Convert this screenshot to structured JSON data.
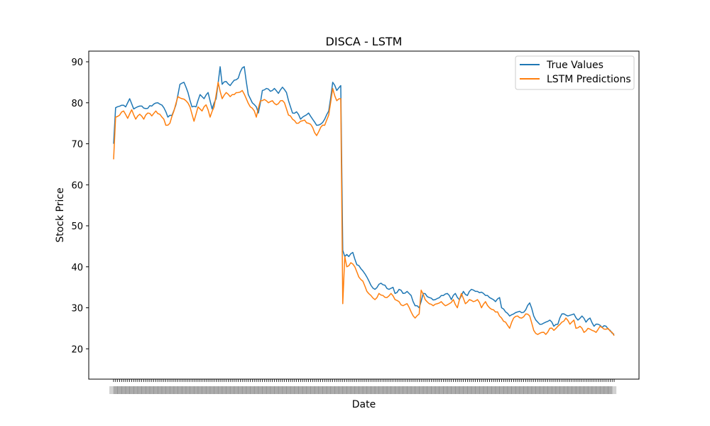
{
  "chart_data": {
    "type": "line",
    "title": "DISCA - LSTM",
    "xlabel": "Date",
    "ylabel": "Stock Price",
    "ylim": [
      12.6,
      92.6
    ],
    "yticks": [
      20,
      30,
      40,
      50,
      60,
      70,
      80,
      90
    ],
    "grid": false,
    "legend_position": "top-right",
    "x_tick_note": "dense overlapping date tick labels (unreadable)",
    "x_count": 250,
    "series": [
      {
        "name": "True Values",
        "color": "#1f77b4",
        "keypoints": [
          [
            0,
            70
          ],
          [
            1,
            78.8
          ],
          [
            4,
            79.4
          ],
          [
            6,
            79.0
          ],
          [
            8,
            81.0
          ],
          [
            10,
            78.5
          ],
          [
            13,
            79.2
          ],
          [
            16,
            78.6
          ],
          [
            19,
            79.2
          ],
          [
            22,
            80.0
          ],
          [
            25,
            78.8
          ],
          [
            27,
            76.5
          ],
          [
            29,
            76.9
          ],
          [
            31,
            79.5
          ],
          [
            33,
            84.5
          ],
          [
            35,
            85.0
          ],
          [
            37,
            82.5
          ],
          [
            39,
            79.0
          ],
          [
            41,
            79.0
          ],
          [
            43,
            82.0
          ],
          [
            45,
            81.0
          ],
          [
            47,
            82.5
          ],
          [
            49,
            78.5
          ],
          [
            51,
            81.0
          ],
          [
            53,
            88.8
          ],
          [
            54,
            84.5
          ],
          [
            56,
            85.2
          ],
          [
            58,
            84.2
          ],
          [
            60,
            85.5
          ],
          [
            62,
            86.0
          ],
          [
            64,
            88.5
          ],
          [
            65,
            88.8
          ],
          [
            67,
            82.0
          ],
          [
            69,
            80.0
          ],
          [
            71,
            79.0
          ],
          [
            72,
            77.5
          ],
          [
            74,
            83.0
          ],
          [
            76,
            83.5
          ],
          [
            78,
            82.8
          ],
          [
            80,
            83.5
          ],
          [
            82,
            82.3
          ],
          [
            84,
            83.8
          ],
          [
            86,
            82.5
          ],
          [
            88,
            79.0
          ],
          [
            89,
            77.5
          ],
          [
            91,
            77.8
          ],
          [
            93,
            76.0
          ],
          [
            95,
            76.8
          ],
          [
            97,
            77.5
          ],
          [
            99,
            76.0
          ],
          [
            101,
            74.5
          ],
          [
            103,
            74.8
          ],
          [
            105,
            76.0
          ],
          [
            107,
            78.0
          ],
          [
            109,
            85.0
          ],
          [
            111,
            83.0
          ],
          [
            113,
            84.2
          ],
          [
            114,
            44.0
          ],
          [
            115,
            42.5
          ],
          [
            116,
            43.0
          ],
          [
            117,
            42.5
          ],
          [
            119,
            43.5
          ],
          [
            121,
            40.5
          ],
          [
            124,
            39.0
          ],
          [
            126,
            37.5
          ],
          [
            128,
            35.5
          ],
          [
            130,
            34.5
          ],
          [
            133,
            36.0
          ],
          [
            135,
            35.5
          ],
          [
            137,
            34.5
          ],
          [
            139,
            35.0
          ],
          [
            140,
            33.5
          ],
          [
            142,
            34.5
          ],
          [
            144,
            33.5
          ],
          [
            146,
            34.0
          ],
          [
            148,
            33.0
          ],
          [
            150,
            30.5
          ],
          [
            152,
            30.0
          ],
          [
            154,
            33.5
          ],
          [
            157,
            32.5
          ],
          [
            160,
            32.0
          ],
          [
            163,
            33.0
          ],
          [
            166,
            33.5
          ],
          [
            168,
            32.0
          ],
          [
            170,
            33.5
          ],
          [
            172,
            32.0
          ],
          [
            174,
            34.0
          ],
          [
            176,
            33.0
          ],
          [
            178,
            34.5
          ],
          [
            181,
            34.0
          ],
          [
            184,
            33.5
          ],
          [
            187,
            32.5
          ],
          [
            190,
            31.5
          ],
          [
            192,
            32.5
          ],
          [
            193,
            30.0
          ],
          [
            195,
            29.0
          ],
          [
            197,
            28.0
          ],
          [
            199,
            28.5
          ],
          [
            201,
            29.0
          ],
          [
            203,
            28.8
          ],
          [
            205,
            29.5
          ],
          [
            207,
            31.2
          ],
          [
            209,
            28.0
          ],
          [
            211,
            26.5
          ],
          [
            213,
            26.0
          ],
          [
            215,
            26.5
          ],
          [
            217,
            27.0
          ],
          [
            219,
            25.5
          ],
          [
            221,
            26.0
          ],
          [
            223,
            28.5
          ],
          [
            226,
            28.0
          ],
          [
            229,
            28.5
          ],
          [
            231,
            27.0
          ],
          [
            233,
            28.0
          ],
          [
            235,
            26.5
          ],
          [
            237,
            27.5
          ],
          [
            239,
            25.5
          ],
          [
            241,
            26.0
          ],
          [
            243,
            25.2
          ],
          [
            245,
            25.5
          ],
          [
            247,
            24.5
          ],
          [
            249,
            23.5
          ]
        ]
      },
      {
        "name": "LSTM Predictions",
        "color": "#ff7f0e",
        "keypoints": [
          [
            0,
            66.2
          ],
          [
            1,
            76.5
          ],
          [
            3,
            77.0
          ],
          [
            5,
            78.0
          ],
          [
            7,
            76.2
          ],
          [
            9,
            78.3
          ],
          [
            11,
            76.0
          ],
          [
            13,
            77.2
          ],
          [
            15,
            76.0
          ],
          [
            17,
            77.5
          ],
          [
            19,
            76.8
          ],
          [
            21,
            78.0
          ],
          [
            23,
            77.2
          ],
          [
            25,
            76.0
          ],
          [
            26,
            74.5
          ],
          [
            28,
            75.0
          ],
          [
            30,
            78.0
          ],
          [
            32,
            81.5
          ],
          [
            34,
            81.0
          ],
          [
            36,
            80.5
          ],
          [
            38,
            79.0
          ],
          [
            40,
            75.5
          ],
          [
            42,
            79.0
          ],
          [
            44,
            78.0
          ],
          [
            46,
            79.5
          ],
          [
            48,
            76.5
          ],
          [
            50,
            79.0
          ],
          [
            52,
            85.0
          ],
          [
            54,
            81.0
          ],
          [
            56,
            82.5
          ],
          [
            58,
            81.5
          ],
          [
            60,
            82.0
          ],
          [
            62,
            82.5
          ],
          [
            64,
            83.0
          ],
          [
            66,
            81.0
          ],
          [
            68,
            79.0
          ],
          [
            70,
            78.0
          ],
          [
            71,
            76.5
          ],
          [
            73,
            80.5
          ],
          [
            75,
            80.8
          ],
          [
            77,
            80.0
          ],
          [
            79,
            80.5
          ],
          [
            81,
            79.5
          ],
          [
            83,
            80.5
          ],
          [
            85,
            80.0
          ],
          [
            87,
            77.0
          ],
          [
            89,
            76.0
          ],
          [
            91,
            75.0
          ],
          [
            93,
            75.5
          ],
          [
            95,
            75.8
          ],
          [
            97,
            75.0
          ],
          [
            99,
            74.0
          ],
          [
            101,
            72.0
          ],
          [
            103,
            74.0
          ],
          [
            105,
            74.5
          ],
          [
            107,
            77.0
          ],
          [
            109,
            83.5
          ],
          [
            111,
            80.5
          ],
          [
            113,
            81.0
          ],
          [
            114,
            31.0
          ],
          [
            115,
            42.5
          ],
          [
            116,
            40.0
          ],
          [
            118,
            41.0
          ],
          [
            120,
            40.0
          ],
          [
            122,
            37.5
          ],
          [
            124,
            36.5
          ],
          [
            126,
            34.0
          ],
          [
            128,
            33.0
          ],
          [
            130,
            32.0
          ],
          [
            132,
            33.5
          ],
          [
            134,
            33.0
          ],
          [
            136,
            32.5
          ],
          [
            138,
            33.5
          ],
          [
            140,
            32.0
          ],
          [
            142,
            31.5
          ],
          [
            144,
            30.5
          ],
          [
            146,
            31.0
          ],
          [
            148,
            29.0
          ],
          [
            150,
            27.5
          ],
          [
            152,
            28.5
          ],
          [
            153,
            34.3
          ],
          [
            155,
            32.0
          ],
          [
            157,
            31.0
          ],
          [
            159,
            30.5
          ],
          [
            161,
            31.0
          ],
          [
            163,
            31.5
          ],
          [
            165,
            30.5
          ],
          [
            167,
            31.0
          ],
          [
            169,
            32.0
          ],
          [
            171,
            30.0
          ],
          [
            173,
            33.5
          ],
          [
            175,
            31.0
          ],
          [
            177,
            32.0
          ],
          [
            179,
            31.5
          ],
          [
            181,
            32.0
          ],
          [
            183,
            30.0
          ],
          [
            185,
            31.5
          ],
          [
            187,
            30.0
          ],
          [
            189,
            29.5
          ],
          [
            191,
            29.0
          ],
          [
            193,
            27.5
          ],
          [
            195,
            26.5
          ],
          [
            197,
            25.0
          ],
          [
            199,
            27.5
          ],
          [
            201,
            28.0
          ],
          [
            203,
            27.5
          ],
          [
            205,
            28.5
          ],
          [
            207,
            28.0
          ],
          [
            209,
            24.5
          ],
          [
            211,
            23.5
          ],
          [
            213,
            24.0
          ],
          [
            215,
            23.5
          ],
          [
            217,
            25.0
          ],
          [
            219,
            24.5
          ],
          [
            221,
            25.5
          ],
          [
            223,
            26.5
          ],
          [
            225,
            27.5
          ],
          [
            227,
            26.0
          ],
          [
            229,
            27.0
          ],
          [
            230,
            25.0
          ],
          [
            232,
            25.5
          ],
          [
            234,
            24.0
          ],
          [
            236,
            25.0
          ],
          [
            238,
            24.5
          ],
          [
            240,
            24.0
          ],
          [
            242,
            25.5
          ],
          [
            244,
            24.8
          ],
          [
            246,
            25.0
          ],
          [
            248,
            24.0
          ],
          [
            249,
            23.2
          ]
        ]
      }
    ]
  }
}
